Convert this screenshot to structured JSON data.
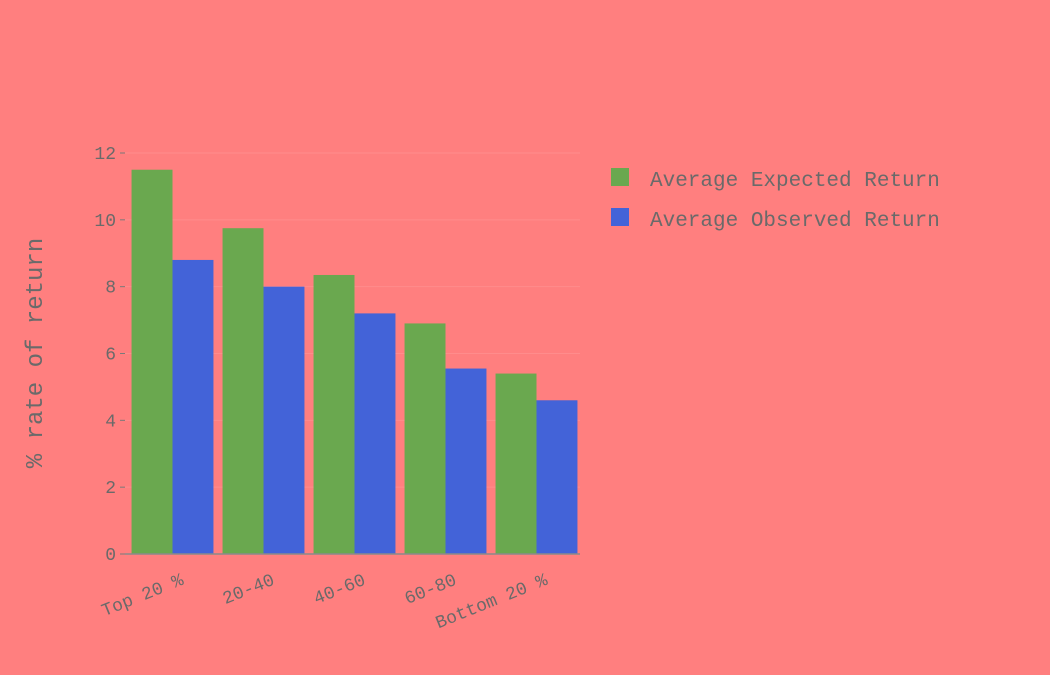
{
  "chart_data": {
    "type": "bar",
    "title": "",
    "xlabel": "",
    "ylabel": "% rate of return",
    "categories": [
      "Top 20 %",
      "20-40",
      "40-60",
      "60-80",
      "Bottom 20 %"
    ],
    "series": [
      {
        "name": "Average Expected Return",
        "color": "#6aa84f",
        "values": [
          11.5,
          9.75,
          8.35,
          6.9,
          5.4
        ]
      },
      {
        "name": "Average Observed Return",
        "color": "#4363d8",
        "values": [
          8.8,
          8.0,
          7.2,
          5.55,
          4.6
        ]
      }
    ],
    "ylim": [
      0,
      12
    ],
    "yticks": [
      0,
      2,
      4,
      6,
      8,
      10,
      12
    ],
    "grid": true,
    "legend_position": "top-right",
    "background": "#ff7f7f",
    "gridline_color": "#ff8c8c"
  }
}
